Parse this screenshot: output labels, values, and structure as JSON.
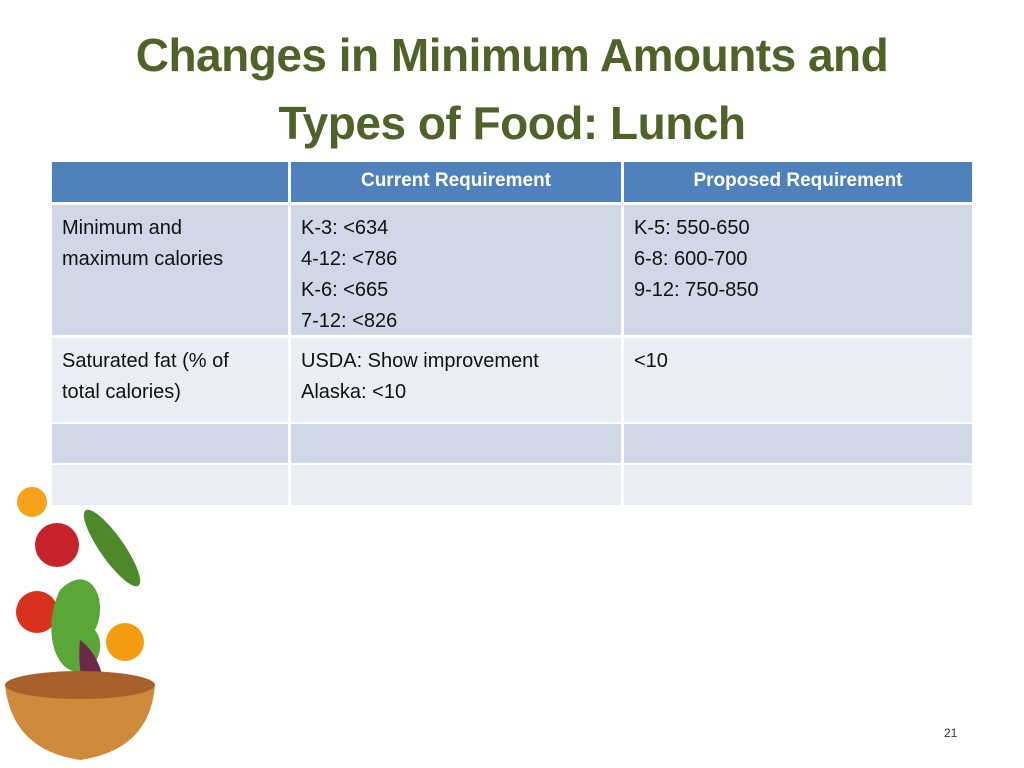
{
  "title": [
    "Changes in Minimum Amounts and",
    "Types of Food: Lunch"
  ],
  "table": {
    "header": [
      "Current Requirement",
      "Proposed Requirement"
    ],
    "rows": [
      [
        [
          "Minimum and",
          "maximum calories"
        ],
        [
          "K-3: <634",
          "4-12: <786",
          "K-6: <665",
          "7-12: <826"
        ],
        [
          "K-5: 550-650",
          "6-8: 600-700",
          "9-12: 750-850"
        ]
      ],
      [
        [
          "Saturated fat (% of",
          "total calories)"
        ],
        [
          "USDA: Show improvement",
          "Alaska: <10"
        ],
        [
          "<10"
        ]
      ]
    ]
  },
  "page_number": "21"
}
